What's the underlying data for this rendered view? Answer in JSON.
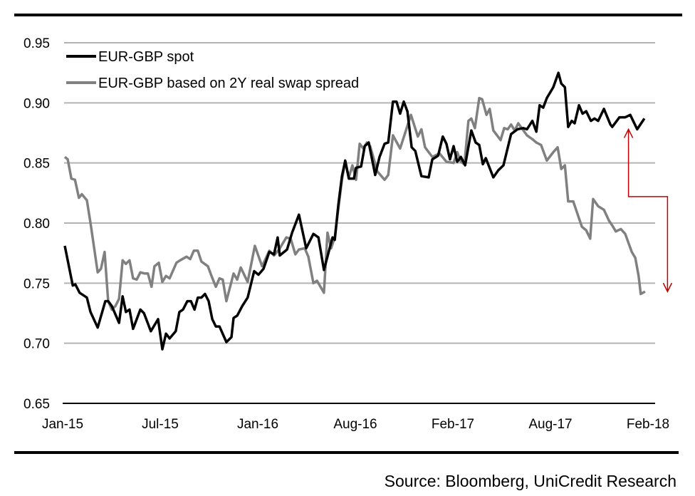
{
  "chart_data": {
    "type": "line",
    "title": "",
    "xlabel": "",
    "ylabel": "",
    "x_unit": "weeks since Jan-15",
    "xlim": [
      0,
      164
    ],
    "ylim": [
      0.65,
      0.95
    ],
    "y_ticks": [
      "0.65",
      "0.70",
      "0.75",
      "0.80",
      "0.85",
      "0.90",
      "0.95"
    ],
    "y_tick_values": [
      0.65,
      0.7,
      0.75,
      0.8,
      0.85,
      0.9,
      0.95
    ],
    "x_ticks": [
      "Jan-15",
      "Jul-15",
      "Jan-16",
      "Aug-16",
      "Feb-17",
      "Aug-17",
      "Feb-18"
    ],
    "x_tick_values": [
      0,
      27,
      54,
      81,
      108,
      135,
      162
    ],
    "grid": true,
    "legend_position": "top-left",
    "series": [
      {
        "name": "EUR-GBP spot",
        "color": "#000000",
        "points": [
          [
            0.6,
            0.781
          ],
          [
            2.8,
            0.748
          ],
          [
            3.5,
            0.749
          ],
          [
            4.7,
            0.742
          ],
          [
            6.7,
            0.738
          ],
          [
            7.7,
            0.726
          ],
          [
            9.7,
            0.713
          ],
          [
            11.8,
            0.735
          ],
          [
            12.6,
            0.735
          ],
          [
            13.6,
            0.731
          ],
          [
            15.6,
            0.717
          ],
          [
            16.6,
            0.739
          ],
          [
            17.5,
            0.726
          ],
          [
            18.5,
            0.728
          ],
          [
            19.5,
            0.712
          ],
          [
            21.5,
            0.728
          ],
          [
            22.5,
            0.725
          ],
          [
            24.4,
            0.71
          ],
          [
            26.4,
            0.72
          ],
          [
            27.6,
            0.695
          ],
          [
            28.6,
            0.708
          ],
          [
            29.6,
            0.704
          ],
          [
            31.3,
            0.71
          ],
          [
            32.3,
            0.726
          ],
          [
            33.3,
            0.728
          ],
          [
            34.5,
            0.735
          ],
          [
            35.5,
            0.735
          ],
          [
            36.5,
            0.728
          ],
          [
            37.4,
            0.738
          ],
          [
            38.4,
            0.738
          ],
          [
            39.4,
            0.741
          ],
          [
            40.4,
            0.735
          ],
          [
            41.4,
            0.72
          ],
          [
            42.4,
            0.714
          ],
          [
            43.4,
            0.714
          ],
          [
            45.3,
            0.701
          ],
          [
            46.7,
            0.705
          ],
          [
            47.3,
            0.721
          ],
          [
            48.3,
            0.723
          ],
          [
            49.7,
            0.731
          ],
          [
            51.2,
            0.738
          ],
          [
            53.0,
            0.76
          ],
          [
            54.2,
            0.757
          ],
          [
            55.6,
            0.762
          ],
          [
            57.2,
            0.776
          ],
          [
            58.5,
            0.774
          ],
          [
            59.5,
            0.788
          ],
          [
            60.1,
            0.773
          ],
          [
            62.1,
            0.778
          ],
          [
            63.5,
            0.792
          ],
          [
            65.4,
            0.807
          ],
          [
            67.4,
            0.779
          ],
          [
            69.4,
            0.791
          ],
          [
            70.8,
            0.788
          ],
          [
            72.3,
            0.761
          ],
          [
            74.7,
            0.788
          ],
          [
            75.3,
            0.786
          ],
          [
            76.3,
            0.815
          ],
          [
            77.3,
            0.839
          ],
          [
            78.2,
            0.852
          ],
          [
            79.2,
            0.837
          ],
          [
            80.6,
            0.837
          ],
          [
            81.2,
            0.846
          ],
          [
            82.6,
            0.847
          ],
          [
            83.6,
            0.864
          ],
          [
            84.7,
            0.867
          ],
          [
            86.5,
            0.84
          ],
          [
            87.7,
            0.855
          ],
          [
            89.1,
            0.866
          ],
          [
            90.1,
            0.867
          ],
          [
            91.4,
            0.901
          ],
          [
            92.4,
            0.901
          ],
          [
            93.4,
            0.891
          ],
          [
            94.4,
            0.901
          ],
          [
            95.4,
            0.893
          ],
          [
            96.6,
            0.863
          ],
          [
            97.6,
            0.86
          ],
          [
            99.3,
            0.839
          ],
          [
            101.3,
            0.838
          ],
          [
            102.3,
            0.853
          ],
          [
            103.9,
            0.856
          ],
          [
            105.2,
            0.872
          ],
          [
            106.2,
            0.866
          ],
          [
            107.2,
            0.853
          ],
          [
            108.2,
            0.864
          ],
          [
            109.2,
            0.851
          ],
          [
            110.2,
            0.855
          ],
          [
            111.4,
            0.848
          ],
          [
            113.1,
            0.877
          ],
          [
            114.3,
            0.867
          ],
          [
            115.3,
            0.865
          ],
          [
            116.3,
            0.849
          ],
          [
            117.1,
            0.854
          ],
          [
            119.2,
            0.838
          ],
          [
            120.6,
            0.844
          ],
          [
            122.0,
            0.848
          ],
          [
            124.1,
            0.874
          ],
          [
            125.9,
            0.878
          ],
          [
            127.5,
            0.879
          ],
          [
            128.5,
            0.878
          ],
          [
            130.0,
            0.885
          ],
          [
            131.1,
            0.876
          ],
          [
            132.0,
            0.898
          ],
          [
            133.0,
            0.896
          ],
          [
            134.0,
            0.904
          ],
          [
            135.8,
            0.913
          ],
          [
            137.2,
            0.925
          ],
          [
            138.0,
            0.916
          ],
          [
            139.0,
            0.913
          ],
          [
            139.9,
            0.88
          ],
          [
            140.9,
            0.885
          ],
          [
            141.7,
            0.883
          ],
          [
            142.9,
            0.898
          ],
          [
            143.9,
            0.891
          ],
          [
            144.9,
            0.893
          ],
          [
            146.2,
            0.885
          ],
          [
            147.2,
            0.887
          ],
          [
            148.2,
            0.885
          ],
          [
            149.8,
            0.895
          ],
          [
            151.6,
            0.882
          ],
          [
            152.1,
            0.88
          ],
          [
            154.1,
            0.888
          ],
          [
            155.7,
            0.888
          ],
          [
            157.1,
            0.89
          ],
          [
            159.0,
            0.878
          ],
          [
            161.0,
            0.887
          ]
        ]
      },
      {
        "name": "EUR-GBP based on 2Y real swap spread",
        "color": "#808080",
        "points": [
          [
            0.6,
            0.855
          ],
          [
            1.4,
            0.853
          ],
          [
            2.4,
            0.837
          ],
          [
            3.4,
            0.836
          ],
          [
            4.5,
            0.821
          ],
          [
            5.3,
            0.824
          ],
          [
            6.7,
            0.819
          ],
          [
            7.7,
            0.8
          ],
          [
            9.7,
            0.759
          ],
          [
            10.6,
            0.762
          ],
          [
            11.6,
            0.776
          ],
          [
            12.6,
            0.735
          ],
          [
            13.6,
            0.728
          ],
          [
            14.6,
            0.731
          ],
          [
            15.6,
            0.737
          ],
          [
            16.6,
            0.769
          ],
          [
            17.5,
            0.766
          ],
          [
            18.5,
            0.769
          ],
          [
            19.5,
            0.754
          ],
          [
            20.5,
            0.753
          ],
          [
            21.5,
            0.759
          ],
          [
            22.7,
            0.758
          ],
          [
            23.6,
            0.758
          ],
          [
            24.6,
            0.747
          ],
          [
            25.4,
            0.764
          ],
          [
            26.6,
            0.767
          ],
          [
            27.6,
            0.751
          ],
          [
            28.6,
            0.756
          ],
          [
            29.6,
            0.754
          ],
          [
            31.5,
            0.767
          ],
          [
            32.5,
            0.769
          ],
          [
            34.3,
            0.772
          ],
          [
            35.3,
            0.77
          ],
          [
            36.3,
            0.777
          ],
          [
            37.4,
            0.777
          ],
          [
            38.4,
            0.768
          ],
          [
            40.2,
            0.764
          ],
          [
            41.2,
            0.756
          ],
          [
            42.4,
            0.747
          ],
          [
            43.4,
            0.754
          ],
          [
            44.3,
            0.753
          ],
          [
            45.3,
            0.735
          ],
          [
            47.3,
            0.758
          ],
          [
            48.3,
            0.753
          ],
          [
            49.3,
            0.763
          ],
          [
            51.2,
            0.751
          ],
          [
            53.2,
            0.781
          ],
          [
            55.2,
            0.764
          ],
          [
            57.2,
            0.777
          ],
          [
            58.5,
            0.773
          ],
          [
            59.9,
            0.778
          ],
          [
            61.9,
            0.788
          ],
          [
            63.1,
            0.787
          ],
          [
            64.4,
            0.774
          ],
          [
            65.4,
            0.778
          ],
          [
            67.0,
            0.779
          ],
          [
            68.0,
            0.772
          ],
          [
            69.4,
            0.75
          ],
          [
            70.4,
            0.752
          ],
          [
            72.3,
            0.742
          ],
          [
            73.3,
            0.792
          ],
          [
            74.3,
            0.779
          ],
          [
            75.3,
            0.788
          ],
          [
            77.3,
            0.836
          ],
          [
            78.2,
            0.851
          ],
          [
            79.2,
            0.838
          ],
          [
            80.2,
            0.848
          ],
          [
            81.2,
            0.836
          ],
          [
            82.2,
            0.866
          ],
          [
            83.2,
            0.862
          ],
          [
            84.2,
            0.867
          ],
          [
            85.1,
            0.864
          ],
          [
            87.1,
            0.843
          ],
          [
            89.1,
            0.836
          ],
          [
            90.1,
            0.84
          ],
          [
            91.4,
            0.873
          ],
          [
            93.4,
            0.862
          ],
          [
            96.4,
            0.89
          ],
          [
            98.3,
            0.872
          ],
          [
            99.3,
            0.878
          ],
          [
            100.3,
            0.863
          ],
          [
            102.3,
            0.855
          ],
          [
            104.3,
            0.858
          ],
          [
            106.2,
            0.851
          ],
          [
            108.2,
            0.85
          ],
          [
            109.2,
            0.859
          ],
          [
            110.2,
            0.851
          ],
          [
            111.2,
            0.849
          ],
          [
            112.3,
            0.885
          ],
          [
            113.1,
            0.887
          ],
          [
            114.1,
            0.879
          ],
          [
            115.3,
            0.904
          ],
          [
            116.1,
            0.903
          ],
          [
            117.3,
            0.89
          ],
          [
            118.2,
            0.895
          ],
          [
            119.2,
            0.877
          ],
          [
            121.2,
            0.869
          ],
          [
            122.2,
            0.879
          ],
          [
            123.2,
            0.878
          ],
          [
            124.1,
            0.882
          ],
          [
            125.1,
            0.877
          ],
          [
            126.1,
            0.883
          ],
          [
            128.5,
            0.873
          ],
          [
            129.9,
            0.87
          ],
          [
            131.1,
            0.867
          ],
          [
            132.4,
            0.865
          ],
          [
            134.0,
            0.852
          ],
          [
            135.8,
            0.859
          ],
          [
            137.0,
            0.863
          ],
          [
            138.0,
            0.845
          ],
          [
            139.0,
            0.848
          ],
          [
            139.9,
            0.818
          ],
          [
            141.3,
            0.818
          ],
          [
            143.7,
            0.797
          ],
          [
            144.9,
            0.794
          ],
          [
            146.0,
            0.787
          ],
          [
            146.8,
            0.82
          ],
          [
            148.2,
            0.814
          ],
          [
            149.8,
            0.811
          ],
          [
            151.2,
            0.802
          ],
          [
            152.1,
            0.798
          ],
          [
            153.1,
            0.793
          ],
          [
            154.5,
            0.795
          ],
          [
            155.7,
            0.791
          ],
          [
            157.5,
            0.776
          ],
          [
            158.5,
            0.771
          ],
          [
            159.4,
            0.756
          ],
          [
            160.0,
            0.741
          ],
          [
            161.2,
            0.743
          ]
        ]
      }
    ],
    "annotation": {
      "type": "arrow",
      "color": "#c00000",
      "from_value": 0.822,
      "up_to": 0.878,
      "down_to": 0.743,
      "x_week": 156.6,
      "x2_week": 167.4
    }
  },
  "source": "Source: Bloomberg, UniCredit Research"
}
